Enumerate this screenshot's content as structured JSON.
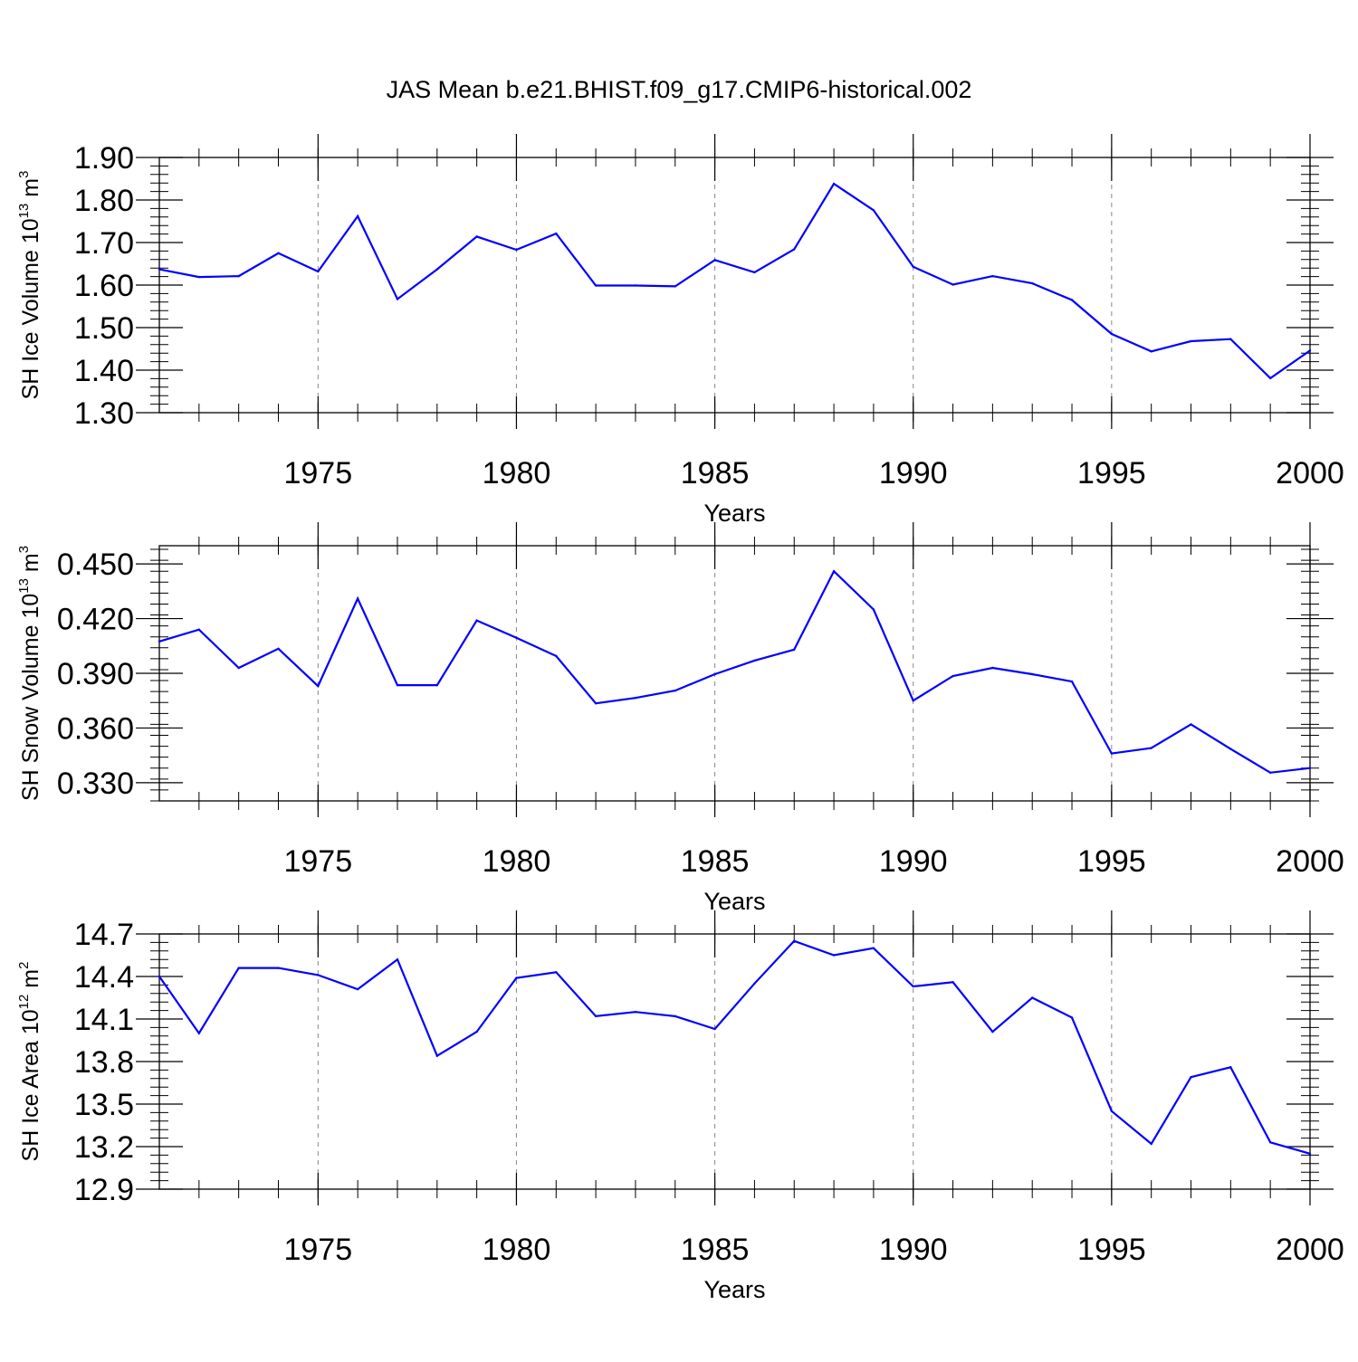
{
  "figure": {
    "title": "JAS Mean b.e21.BHIST.f09_g17.CMIP6-historical.002",
    "line_color": "#0000ff"
  },
  "chart_data": [
    {
      "type": "line",
      "xlabel": "Years",
      "ylabel_main": "SH Ice Volume 10",
      "ylabel_exp": "13",
      "ylabel_unit": "m",
      "ylabel_unit_exp": "3",
      "xlim": [
        1971,
        2000
      ],
      "ylim": [
        1.3,
        1.9
      ],
      "x_ticks": [
        1975,
        1980,
        1985,
        1990,
        1995,
        2000
      ],
      "x_tick_labels": [
        "1975",
        "1980",
        "1985",
        "1990",
        "1995",
        "2000"
      ],
      "y_ticks": [
        1.3,
        1.4,
        1.5,
        1.6,
        1.7,
        1.8,
        1.9
      ],
      "y_tick_labels": [
        "1.30",
        "1.40",
        "1.50",
        "1.60",
        "1.70",
        "1.80",
        "1.90"
      ],
      "grid": "vertical dashed at major x ticks",
      "x": [
        1971,
        1972,
        1973,
        1974,
        1975,
        1976,
        1977,
        1978,
        1979,
        1980,
        1981,
        1982,
        1983,
        1984,
        1985,
        1986,
        1987,
        1988,
        1989,
        1990,
        1991,
        1992,
        1993,
        1994,
        1995,
        1996,
        1997,
        1998,
        1999,
        2000
      ],
      "values": [
        1.637,
        1.619,
        1.621,
        1.675,
        1.632,
        1.762,
        1.567,
        1.637,
        1.714,
        1.683,
        1.721,
        1.599,
        1.599,
        1.597,
        1.659,
        1.63,
        1.684,
        1.838,
        1.776,
        1.643,
        1.601,
        1.621,
        1.604,
        1.565,
        1.485,
        1.444,
        1.468,
        1.473,
        1.381,
        1.446
      ]
    },
    {
      "type": "line",
      "xlabel": "Years",
      "ylabel_main": "SH Snow Volume 10",
      "ylabel_exp": "13",
      "ylabel_unit": "m",
      "ylabel_unit_exp": "3",
      "xlim": [
        1971,
        2000
      ],
      "ylim": [
        0.32,
        0.46
      ],
      "x_ticks": [
        1975,
        1980,
        1985,
        1990,
        1995,
        2000
      ],
      "x_tick_labels": [
        "1975",
        "1980",
        "1985",
        "1990",
        "1995",
        "2000"
      ],
      "y_ticks": [
        0.33,
        0.36,
        0.39,
        0.42,
        0.45
      ],
      "y_tick_labels": [
        "0.330",
        "0.360",
        "0.390",
        "0.420",
        "0.450"
      ],
      "grid": "vertical dashed at major x ticks",
      "x": [
        1971,
        1972,
        1973,
        1974,
        1975,
        1976,
        1977,
        1978,
        1979,
        1980,
        1981,
        1982,
        1983,
        1984,
        1985,
        1986,
        1987,
        1988,
        1989,
        1990,
        1991,
        1992,
        1993,
        1994,
        1995,
        1996,
        1997,
        1998,
        1999,
        2000
      ],
      "values": [
        0.4075,
        0.414,
        0.393,
        0.4035,
        0.383,
        0.431,
        0.3835,
        0.3835,
        0.419,
        0.4095,
        0.3995,
        0.3735,
        0.3765,
        0.3805,
        0.3895,
        0.397,
        0.403,
        0.446,
        0.425,
        0.375,
        0.3885,
        0.393,
        0.3895,
        0.3855,
        0.346,
        0.349,
        0.362,
        0.3485,
        0.3355,
        0.338
      ]
    },
    {
      "type": "line",
      "xlabel": "Years",
      "ylabel_main": "SH Ice Area 10",
      "ylabel_exp": "12",
      "ylabel_unit": "m",
      "ylabel_unit_exp": "2",
      "xlim": [
        1971,
        2000
      ],
      "ylim": [
        12.9,
        14.7
      ],
      "x_ticks": [
        1975,
        1980,
        1985,
        1990,
        1995,
        2000
      ],
      "x_tick_labels": [
        "1975",
        "1980",
        "1985",
        "1990",
        "1995",
        "2000"
      ],
      "y_ticks": [
        12.9,
        13.2,
        13.5,
        13.8,
        14.1,
        14.4,
        14.7
      ],
      "y_tick_labels": [
        "12.9",
        "13.2",
        "13.5",
        "13.8",
        "14.1",
        "14.4",
        "14.7"
      ],
      "grid": "vertical dashed at major x ticks",
      "x": [
        1971,
        1972,
        1973,
        1974,
        1975,
        1976,
        1977,
        1978,
        1979,
        1980,
        1981,
        1982,
        1983,
        1984,
        1985,
        1986,
        1987,
        1988,
        1989,
        1990,
        1991,
        1992,
        1993,
        1994,
        1995,
        1996,
        1997,
        1998,
        1999,
        2000
      ],
      "values": [
        14.4,
        14.0,
        14.46,
        14.46,
        14.41,
        14.31,
        14.52,
        13.84,
        14.01,
        14.39,
        14.43,
        14.12,
        14.15,
        14.12,
        14.03,
        14.35,
        14.65,
        14.55,
        14.6,
        14.33,
        14.36,
        14.01,
        14.25,
        14.11,
        13.45,
        13.22,
        13.69,
        13.76,
        13.23,
        13.15
      ]
    }
  ]
}
